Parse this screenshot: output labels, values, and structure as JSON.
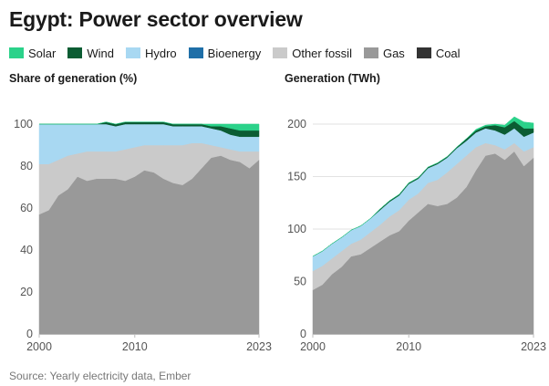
{
  "page": {
    "title": "Egypt: Power sector overview",
    "source": "Source: Yearly electricity data, Ember"
  },
  "legend": [
    {
      "name": "Solar",
      "color": "#2bd28a"
    },
    {
      "name": "Wind",
      "color": "#0b5c33"
    },
    {
      "name": "Hydro",
      "color": "#a8d8f2"
    },
    {
      "name": "Bioenergy",
      "color": "#1f6fa8"
    },
    {
      "name": "Other fossil",
      "color": "#cacaca"
    },
    {
      "name": "Gas",
      "color": "#999999"
    },
    {
      "name": "Coal",
      "color": "#333333"
    }
  ],
  "chart_data": [
    {
      "type": "area",
      "stacked": true,
      "title": "Share of generation (%)",
      "xlim": [
        2000,
        2023
      ],
      "ylim": [
        0,
        100
      ],
      "x_ticks": [
        "2000",
        "2010",
        "2023"
      ],
      "y_ticks": [
        "0",
        "20",
        "40",
        "60",
        "80",
        "100"
      ],
      "grid": "horizontal",
      "x": [
        2000,
        2001,
        2002,
        2003,
        2004,
        2005,
        2006,
        2007,
        2008,
        2009,
        2010,
        2011,
        2012,
        2013,
        2014,
        2015,
        2016,
        2017,
        2018,
        2019,
        2020,
        2021,
        2022,
        2023
      ],
      "series": [
        {
          "name": "Gas",
          "color": "#999999",
          "values": [
            57,
            59,
            66,
            69,
            75,
            73,
            74,
            74,
            74,
            73,
            75,
            78,
            77,
            74,
            72,
            71,
            74,
            79,
            84,
            85,
            83,
            82,
            79,
            83
          ]
        },
        {
          "name": "Other fossil",
          "color": "#cacaca",
          "values": [
            24,
            22,
            17,
            16,
            11,
            14,
            13,
            13,
            13,
            15,
            14,
            12,
            13,
            16,
            18,
            19,
            17,
            12,
            6,
            4,
            5,
            5,
            8,
            4
          ]
        },
        {
          "name": "Hydro",
          "color": "#a8d8f2",
          "values": [
            19,
            19,
            17,
            15,
            14,
            13,
            13,
            13,
            12,
            12,
            11,
            10,
            10,
            10,
            9,
            9,
            8,
            8,
            8,
            8,
            7,
            7,
            7,
            7
          ]
        },
        {
          "name": "Wind",
          "color": "#0b5c33",
          "values": [
            0,
            0,
            0,
            0,
            0,
            0,
            0,
            1,
            1,
            1,
            1,
            1,
            1,
            1,
            1,
            1,
            1,
            1,
            1,
            2,
            3,
            3,
            3,
            3
          ]
        },
        {
          "name": "Solar",
          "color": "#2bd28a",
          "values": [
            0,
            0,
            0,
            0,
            0,
            0,
            0,
            0,
            0,
            0,
            0,
            0,
            0,
            0,
            0,
            0,
            0,
            0,
            1,
            1,
            2,
            3,
            3,
            3
          ]
        }
      ]
    },
    {
      "type": "area",
      "stacked": true,
      "title": "Generation (TWh)",
      "xlim": [
        2000,
        2023
      ],
      "ylim": [
        0,
        200
      ],
      "x_ticks": [
        "2000",
        "2010",
        "2023"
      ],
      "y_ticks": [
        "0",
        "50",
        "100",
        "150",
        "200"
      ],
      "grid": "horizontal",
      "x": [
        2000,
        2001,
        2002,
        2003,
        2004,
        2005,
        2006,
        2007,
        2008,
        2009,
        2010,
        2011,
        2012,
        2013,
        2014,
        2015,
        2016,
        2017,
        2018,
        2019,
        2020,
        2021,
        2022,
        2023
      ],
      "series": [
        {
          "name": "Gas",
          "color": "#999999",
          "values": [
            42,
            47,
            57,
            64,
            74,
            76,
            82,
            88,
            94,
            98,
            108,
            116,
            124,
            122,
            124,
            130,
            140,
            156,
            170,
            172,
            166,
            174,
            160,
            168
          ]
        },
        {
          "name": "Other fossil",
          "color": "#cacaca",
          "values": [
            18,
            18,
            15,
            15,
            12,
            14,
            15,
            16,
            18,
            20,
            20,
            18,
            20,
            25,
            30,
            32,
            30,
            22,
            12,
            8,
            10,
            8,
            14,
            10
          ]
        },
        {
          "name": "Hydro",
          "color": "#a8d8f2",
          "values": [
            14,
            14,
            14,
            13,
            13,
            13,
            13,
            14,
            14,
            14,
            15,
            14,
            14,
            15,
            14,
            15,
            14,
            14,
            14,
            14,
            14,
            14,
            14,
            14
          ]
        },
        {
          "name": "Wind",
          "color": "#0b5c33",
          "values": [
            0,
            0,
            0,
            0,
            0,
            0,
            0,
            1,
            1,
            1,
            1,
            1,
            1,
            1,
            1,
            1,
            2,
            2,
            2,
            5,
            7,
            7,
            8,
            4
          ]
        },
        {
          "name": "Solar",
          "color": "#2bd28a",
          "values": [
            0,
            0,
            0,
            0,
            0,
            0,
            0,
            0,
            0,
            0,
            0,
            0,
            0,
            0,
            0,
            0,
            0,
            1,
            1,
            1,
            2,
            4,
            6,
            5
          ]
        }
      ]
    }
  ]
}
